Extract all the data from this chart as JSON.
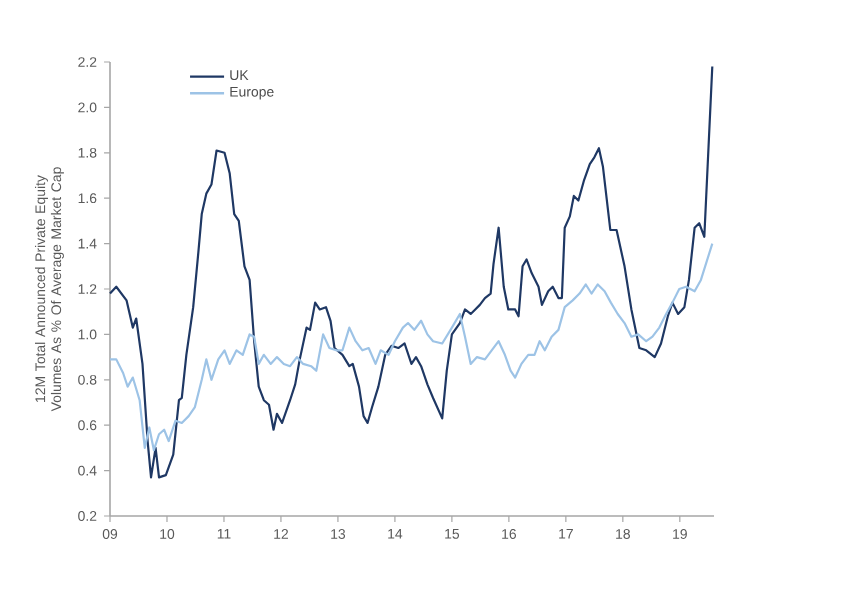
{
  "chart_data": {
    "type": "line",
    "ylabel": "12M Total Announced Private Equity Volumes As % Of Average Market Cap",
    "xlim": [
      2009,
      2019.6
    ],
    "ylim": [
      0.2,
      2.2
    ],
    "xticks": [
      {
        "value": 2009,
        "label": "09"
      },
      {
        "value": 2010,
        "label": "10"
      },
      {
        "value": 2011,
        "label": "11"
      },
      {
        "value": 2012,
        "label": "12"
      },
      {
        "value": 2013,
        "label": "13"
      },
      {
        "value": 2014,
        "label": "14"
      },
      {
        "value": 2015,
        "label": "15"
      },
      {
        "value": 2016,
        "label": "16"
      },
      {
        "value": 2017,
        "label": "17"
      },
      {
        "value": 2018,
        "label": "18"
      },
      {
        "value": 2019,
        "label": "19"
      }
    ],
    "yticks": [
      0.2,
      0.4,
      0.6,
      0.8,
      {
        "value": 1,
        "label": "1.0"
      },
      1.2,
      1.4,
      1.6,
      1.8,
      {
        "value": 2,
        "label": "2.0"
      },
      2.2
    ],
    "legend": "top left",
    "grid": false,
    "marker": "none",
    "line_style": "solid",
    "series": [
      {
        "name": "UK",
        "color": "#1f3864",
        "x": [
          2009.0,
          2009.11,
          2009.29,
          2009.4,
          2009.46,
          2009.57,
          2009.66,
          2009.72,
          2009.8,
          2009.86,
          2009.98,
          2010.11,
          2010.21,
          2010.26,
          2010.34,
          2010.46,
          2010.55,
          2010.61,
          2010.69,
          2010.78,
          2010.87,
          2011.01,
          2011.1,
          2011.18,
          2011.26,
          2011.36,
          2011.45,
          2011.53,
          2011.61,
          2011.7,
          2011.79,
          2011.87,
          2011.93,
          2012.02,
          2012.16,
          2012.25,
          2012.33,
          2012.45,
          2012.51,
          2012.6,
          2012.68,
          2012.79,
          2012.87,
          2012.94,
          2013.08,
          2013.2,
          2013.26,
          2013.37,
          2013.45,
          2013.52,
          2013.6,
          2013.71,
          2013.83,
          2013.94,
          2014.06,
          2014.17,
          2014.29,
          2014.37,
          2014.46,
          2014.57,
          2014.67,
          2014.83,
          2014.91,
          2015.0,
          2015.14,
          2015.23,
          2015.33,
          2015.41,
          2015.49,
          2015.58,
          2015.68,
          2015.73,
          2015.82,
          2015.91,
          2015.99,
          2016.11,
          2016.17,
          2016.24,
          2016.31,
          2016.4,
          2016.52,
          2016.58,
          2016.69,
          2016.77,
          2016.87,
          2016.93,
          2016.98,
          2017.07,
          2017.14,
          2017.22,
          2017.32,
          2017.42,
          2017.5,
          2017.58,
          2017.65,
          2017.78,
          2017.89,
          2018.03,
          2018.15,
          2018.29,
          2018.41,
          2018.56,
          2018.67,
          2018.79,
          2018.87,
          2018.97,
          2019.08,
          2019.16,
          2019.26,
          2019.34,
          2019.43,
          2019.57
        ],
        "values": [
          1.18,
          1.21,
          1.15,
          1.03,
          1.07,
          0.87,
          0.53,
          0.37,
          0.5,
          0.37,
          0.38,
          0.47,
          0.71,
          0.72,
          0.91,
          1.12,
          1.36,
          1.53,
          1.62,
          1.66,
          1.81,
          1.8,
          1.71,
          1.53,
          1.5,
          1.3,
          1.24,
          0.97,
          0.77,
          0.71,
          0.69,
          0.58,
          0.65,
          0.61,
          0.71,
          0.78,
          0.89,
          1.03,
          1.02,
          1.14,
          1.11,
          1.12,
          1.06,
          0.94,
          0.91,
          0.86,
          0.87,
          0.77,
          0.64,
          0.61,
          0.68,
          0.77,
          0.91,
          0.95,
          0.94,
          0.96,
          0.87,
          0.9,
          0.86,
          0.78,
          0.72,
          0.63,
          0.84,
          1.0,
          1.05,
          1.11,
          1.09,
          1.11,
          1.13,
          1.16,
          1.18,
          1.31,
          1.47,
          1.21,
          1.11,
          1.11,
          1.08,
          1.3,
          1.33,
          1.27,
          1.21,
          1.13,
          1.19,
          1.21,
          1.16,
          1.16,
          1.47,
          1.52,
          1.61,
          1.59,
          1.68,
          1.75,
          1.78,
          1.82,
          1.74,
          1.46,
          1.46,
          1.3,
          1.11,
          0.94,
          0.93,
          0.9,
          0.96,
          1.08,
          1.14,
          1.09,
          1.12,
          1.24,
          1.47,
          1.49,
          1.43,
          2.18
        ]
      },
      {
        "name": "Europe",
        "color": "#9dc3e6",
        "x": [
          2009.0,
          2009.11,
          2009.23,
          2009.31,
          2009.4,
          2009.52,
          2009.61,
          2009.69,
          2009.77,
          2009.86,
          2009.95,
          2010.03,
          2010.15,
          2010.26,
          2010.38,
          2010.49,
          2010.61,
          2010.69,
          2010.78,
          2010.9,
          2011.01,
          2011.1,
          2011.22,
          2011.33,
          2011.45,
          2011.53,
          2011.61,
          2011.7,
          2011.82,
          2011.93,
          2012.05,
          2012.16,
          2012.28,
          2012.39,
          2012.53,
          2012.62,
          2012.74,
          2012.85,
          2012.97,
          2013.08,
          2013.2,
          2013.31,
          2013.43,
          2013.54,
          2013.66,
          2013.75,
          2013.89,
          2014.0,
          2014.14,
          2014.23,
          2014.34,
          2014.46,
          2014.57,
          2014.67,
          2014.83,
          2015.0,
          2015.14,
          2015.23,
          2015.33,
          2015.44,
          2015.58,
          2015.7,
          2015.82,
          2015.93,
          2016.03,
          2016.11,
          2016.22,
          2016.34,
          2016.45,
          2016.54,
          2016.63,
          2016.75,
          2016.87,
          2016.98,
          2017.12,
          2017.24,
          2017.35,
          2017.45,
          2017.56,
          2017.68,
          2017.79,
          2017.91,
          2018.03,
          2018.15,
          2018.27,
          2018.41,
          2018.52,
          2018.64,
          2018.76,
          2018.87,
          2018.99,
          2019.11,
          2019.26,
          2019.37,
          2019.57
        ],
        "values": [
          0.89,
          0.89,
          0.83,
          0.77,
          0.81,
          0.71,
          0.5,
          0.59,
          0.49,
          0.56,
          0.58,
          0.53,
          0.62,
          0.61,
          0.64,
          0.68,
          0.8,
          0.89,
          0.8,
          0.89,
          0.93,
          0.87,
          0.93,
          0.91,
          1.0,
          0.99,
          0.87,
          0.91,
          0.87,
          0.9,
          0.87,
          0.86,
          0.9,
          0.87,
          0.86,
          0.84,
          1.0,
          0.94,
          0.93,
          0.93,
          1.03,
          0.97,
          0.93,
          0.94,
          0.87,
          0.93,
          0.91,
          0.97,
          1.03,
          1.05,
          1.02,
          1.06,
          1.0,
          0.97,
          0.96,
          1.03,
          1.09,
          0.99,
          0.87,
          0.9,
          0.89,
          0.93,
          0.97,
          0.91,
          0.84,
          0.81,
          0.87,
          0.91,
          0.91,
          0.97,
          0.93,
          0.99,
          1.02,
          1.12,
          1.15,
          1.18,
          1.22,
          1.18,
          1.22,
          1.19,
          1.14,
          1.09,
          1.05,
          0.99,
          1.0,
          0.97,
          0.99,
          1.03,
          1.09,
          1.14,
          1.2,
          1.21,
          1.19,
          1.24,
          1.4
        ]
      }
    ]
  }
}
